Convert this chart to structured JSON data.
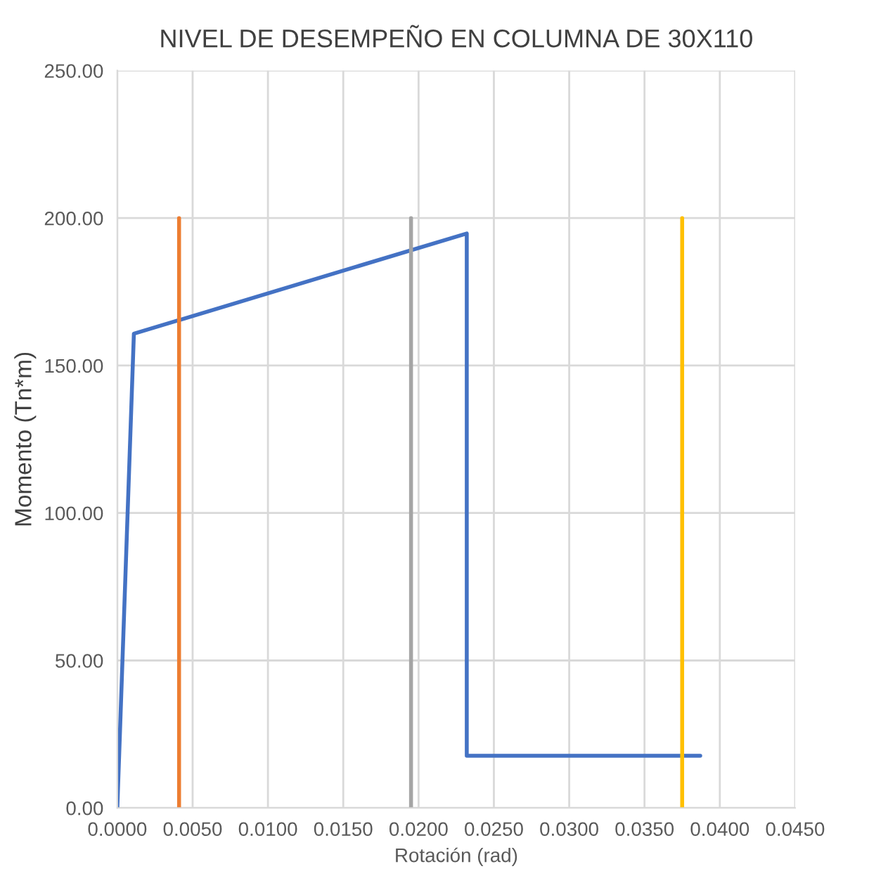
{
  "chart_data": {
    "type": "line",
    "title": "NIVEL DE DESEMPEÑO EN COLUMNA DE 30X110",
    "xlabel": "Rotación (rad)",
    "ylabel": "Momento (Tn*m)",
    "series": [
      {
        "color": "#4472c4",
        "x": [
          0,
          0.0011,
          0.0232,
          0.0232,
          0.0387
        ],
        "values": [
          0,
          160.8,
          194.8,
          17.7,
          17.7
        ]
      },
      {
        "color": "#ed7d31",
        "x": [
          0.0041,
          0.0041
        ],
        "values": [
          0,
          200
        ]
      },
      {
        "color": "#a5a5a5",
        "x": [
          0.0195,
          0.0195
        ],
        "values": [
          0,
          200
        ]
      },
      {
        "color": "#ffc000",
        "x": [
          0.0375,
          0.0375
        ],
        "values": [
          0,
          200
        ]
      }
    ],
    "xlim": [
      0,
      0.045
    ],
    "xticks": [
      {
        "value": 0,
        "label": "0.0000"
      },
      {
        "value": 0.005,
        "label": "0.0050"
      },
      {
        "value": 0.01,
        "label": "0.0100"
      },
      {
        "value": 0.015,
        "label": "0.0150"
      },
      {
        "value": 0.02,
        "label": "0.0200"
      },
      {
        "value": 0.025,
        "label": "0.0250"
      },
      {
        "value": 0.03,
        "label": "0.0300"
      },
      {
        "value": 0.035,
        "label": "0.0350"
      },
      {
        "value": 0.04,
        "label": "0.0400"
      },
      {
        "value": 0.045,
        "label": "0.0450"
      }
    ],
    "ylim": [
      0,
      250
    ],
    "yticks": [
      {
        "value": 0,
        "label": "0.00"
      },
      {
        "value": 50,
        "label": "50.00"
      },
      {
        "value": 100,
        "label": "100.00"
      },
      {
        "value": 150,
        "label": "150.00"
      },
      {
        "value": 200,
        "label": "200.00"
      },
      {
        "value": 250,
        "label": "250.00"
      }
    ],
    "grid": true
  }
}
